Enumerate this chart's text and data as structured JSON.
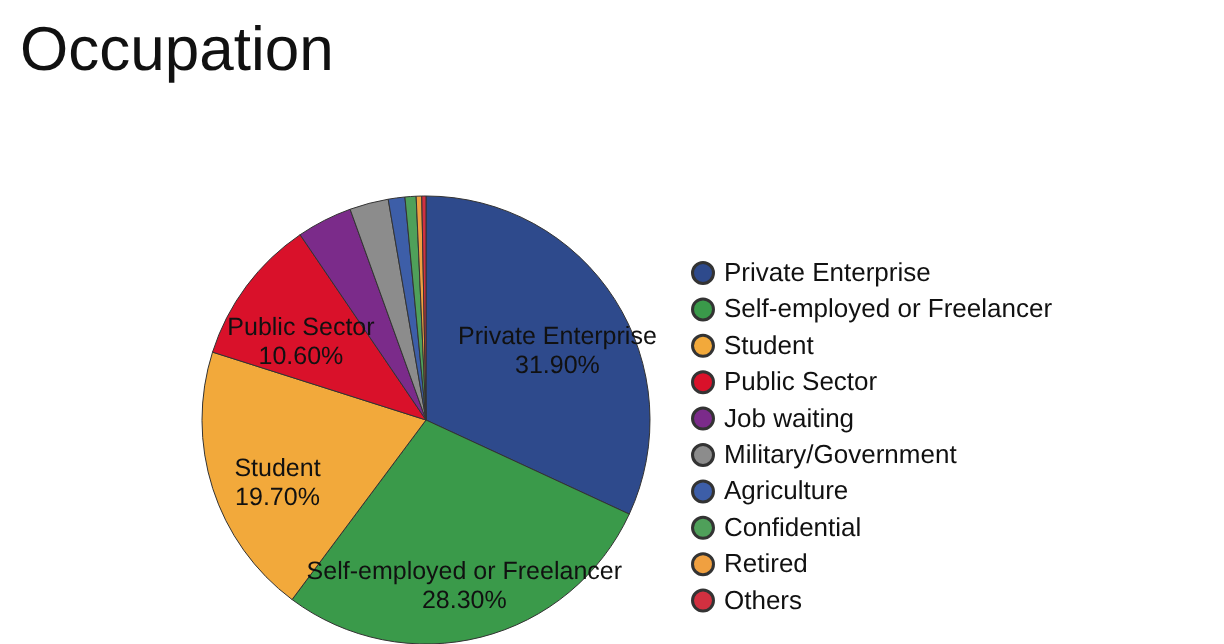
{
  "chart_data": {
    "type": "pie",
    "title": "Occupation",
    "categories": [
      "Private Enterprise",
      "Self-employed or Freelancer",
      "Student",
      "Public Sector",
      "Job waiting",
      "Military/Government",
      "Agriculture",
      "Confidential",
      "Retired",
      "Others"
    ],
    "values": [
      31.9,
      28.3,
      19.7,
      10.6,
      4.0,
      2.8,
      1.2,
      0.8,
      0.4,
      0.3
    ],
    "value_labels": [
      "31.90%",
      "28.30%",
      "19.70%",
      "10.60%",
      null,
      null,
      null,
      null,
      null,
      null
    ],
    "colors": [
      "#2e4a8c",
      "#3a9a4a",
      "#f2a93b",
      "#d9112a",
      "#7b2b8a",
      "#8c8c8c",
      "#3d5ea8",
      "#4fa05a",
      "#f0a040",
      "#d23040"
    ],
    "legend": "right"
  }
}
